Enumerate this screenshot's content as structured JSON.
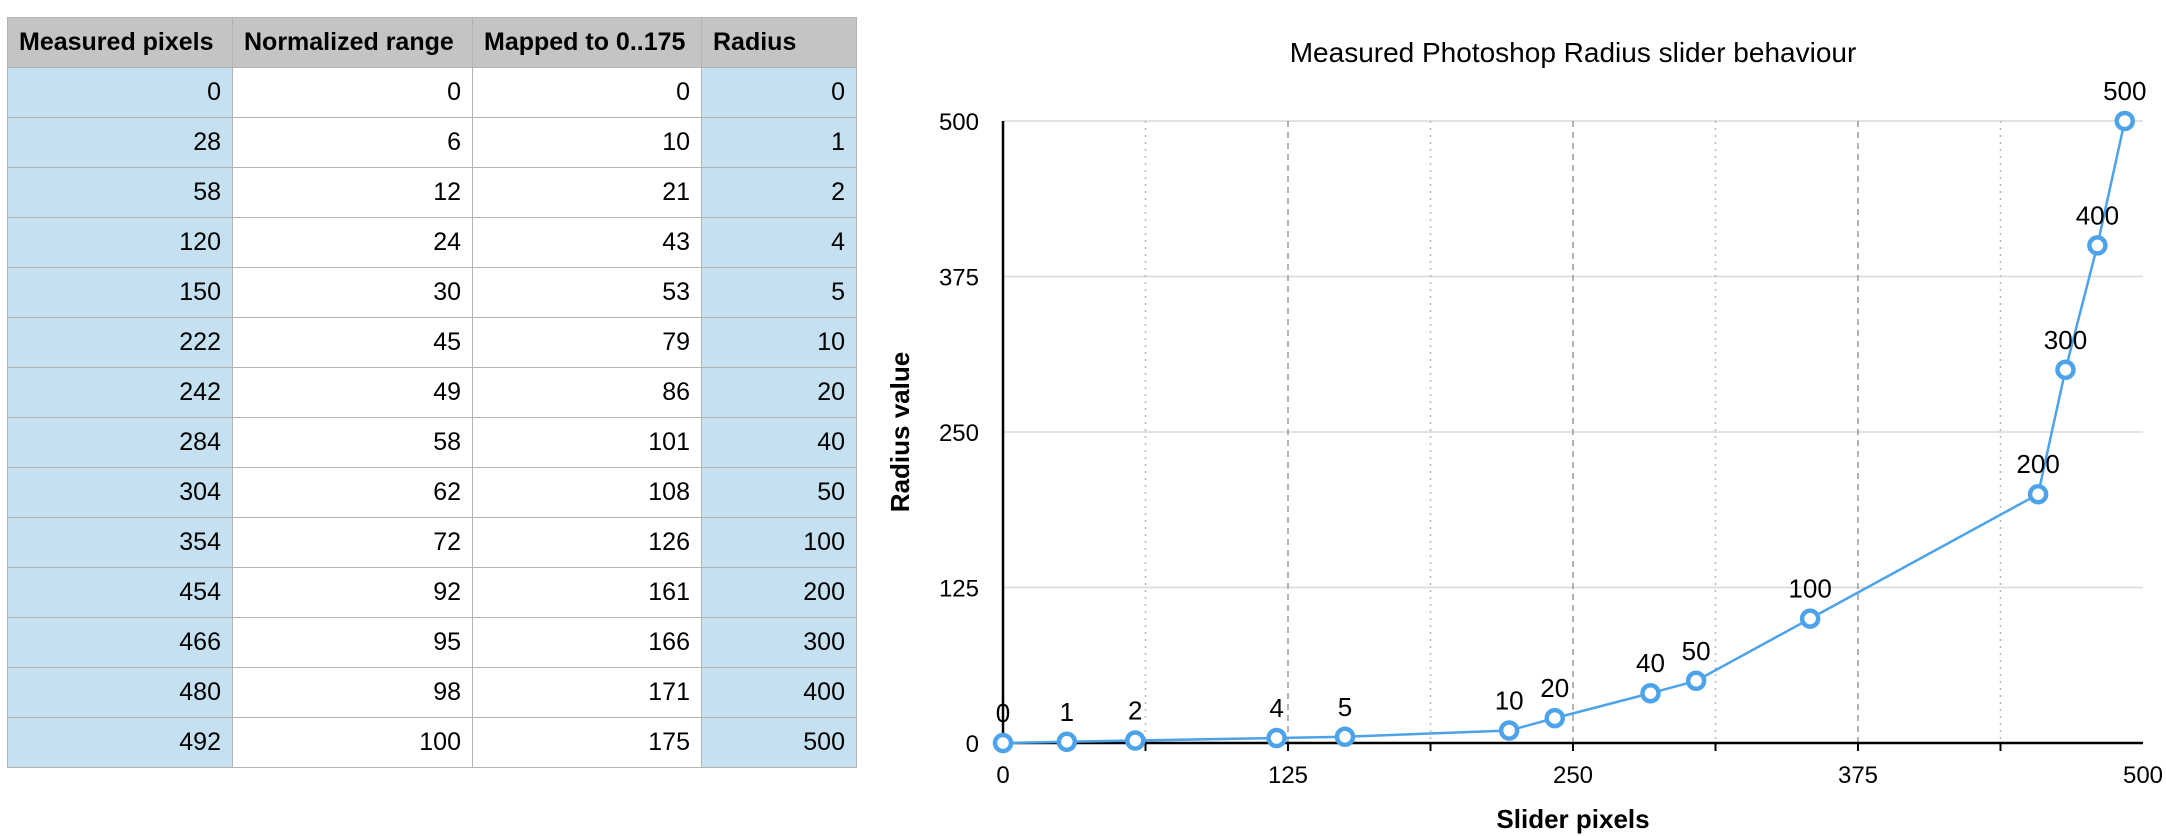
{
  "table": {
    "headers": [
      "Measured pixels",
      "Normalized range",
      "Mapped to 0..175",
      "Radius"
    ],
    "rows": [
      [
        "0",
        "0",
        "0",
        "0"
      ],
      [
        "28",
        "6",
        "10",
        "1"
      ],
      [
        "58",
        "12",
        "21",
        "2"
      ],
      [
        "120",
        "24",
        "43",
        "4"
      ],
      [
        "150",
        "30",
        "53",
        "5"
      ],
      [
        "222",
        "45",
        "79",
        "10"
      ],
      [
        "242",
        "49",
        "86",
        "20"
      ],
      [
        "284",
        "58",
        "101",
        "40"
      ],
      [
        "304",
        "62",
        "108",
        "50"
      ],
      [
        "354",
        "72",
        "126",
        "100"
      ],
      [
        "454",
        "92",
        "161",
        "200"
      ],
      [
        "466",
        "95",
        "166",
        "300"
      ],
      [
        "480",
        "98",
        "171",
        "400"
      ],
      [
        "492",
        "100",
        "175",
        "500"
      ]
    ]
  },
  "chart_data": {
    "type": "line",
    "title": "Measured Photoshop Radius slider behaviour",
    "xlabel": "Slider pixels",
    "ylabel": "Radius value",
    "xlim": [
      0,
      500
    ],
    "ylim": [
      0,
      500
    ],
    "xticks": [
      0,
      125,
      250,
      375,
      500
    ],
    "yticks": [
      0,
      125,
      250,
      375,
      500
    ],
    "grid": true,
    "series": [
      {
        "x": [
          0,
          28,
          58,
          120,
          150,
          222,
          242,
          284,
          304,
          354,
          454,
          466,
          480,
          492
        ],
        "y": [
          0,
          1,
          2,
          4,
          5,
          10,
          20,
          40,
          50,
          100,
          200,
          300,
          400,
          500
        ],
        "labels": [
          "0",
          "1",
          "2",
          "4",
          "5",
          "10",
          "20",
          "40",
          "50",
          "100",
          "200",
          "300",
          "400",
          "500"
        ]
      }
    ],
    "line_color": "#4da3ea"
  }
}
